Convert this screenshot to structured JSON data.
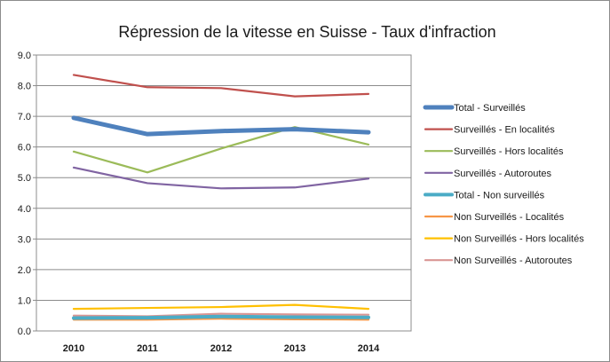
{
  "chart_data": {
    "type": "line",
    "title": "Répression de la vitesse en Suisse - Taux d'infraction",
    "xlabel": "",
    "ylabel": "",
    "x": [
      "2010",
      "2011",
      "2012",
      "2013",
      "2014"
    ],
    "ylim": [
      0,
      9
    ],
    "yticks": [
      "0.0",
      "1.0",
      "2.0",
      "3.0",
      "4.0",
      "5.0",
      "6.0",
      "7.0",
      "8.0",
      "9.0"
    ],
    "grid": "horizontal",
    "legend_position": "right",
    "series": [
      {
        "name": "Total - Surveillés",
        "color": "#4f81bd",
        "values": [
          6.95,
          6.42,
          6.52,
          6.58,
          6.48
        ]
      },
      {
        "name": "Surveillés - En localités",
        "color": "#c0504d",
        "values": [
          8.35,
          7.95,
          7.92,
          7.65,
          7.73
        ]
      },
      {
        "name": "Surveillés - Hors localités",
        "color": "#9bbb59",
        "values": [
          5.85,
          5.17,
          5.95,
          6.65,
          6.08
        ]
      },
      {
        "name": "Surveillés - Autoroutes",
        "color": "#8064a2",
        "values": [
          5.33,
          4.82,
          4.65,
          4.68,
          4.97
        ]
      },
      {
        "name": "Total - Non surveillés",
        "color": "#4bacc6",
        "values": [
          0.42,
          0.43,
          0.47,
          0.45,
          0.44
        ]
      },
      {
        "name": "Non Surveillés - Localités",
        "color": "#f79646",
        "values": [
          0.37,
          0.37,
          0.4,
          0.38,
          0.37
        ]
      },
      {
        "name": "Non Surveillés - Hors localités",
        "color": "#ffc000",
        "values": [
          0.72,
          0.75,
          0.78,
          0.85,
          0.72
        ]
      },
      {
        "name": "Non Surveillés - Autoroutes",
        "color": "#d99694",
        "values": [
          0.5,
          0.48,
          0.56,
          0.54,
          0.53
        ]
      }
    ]
  }
}
